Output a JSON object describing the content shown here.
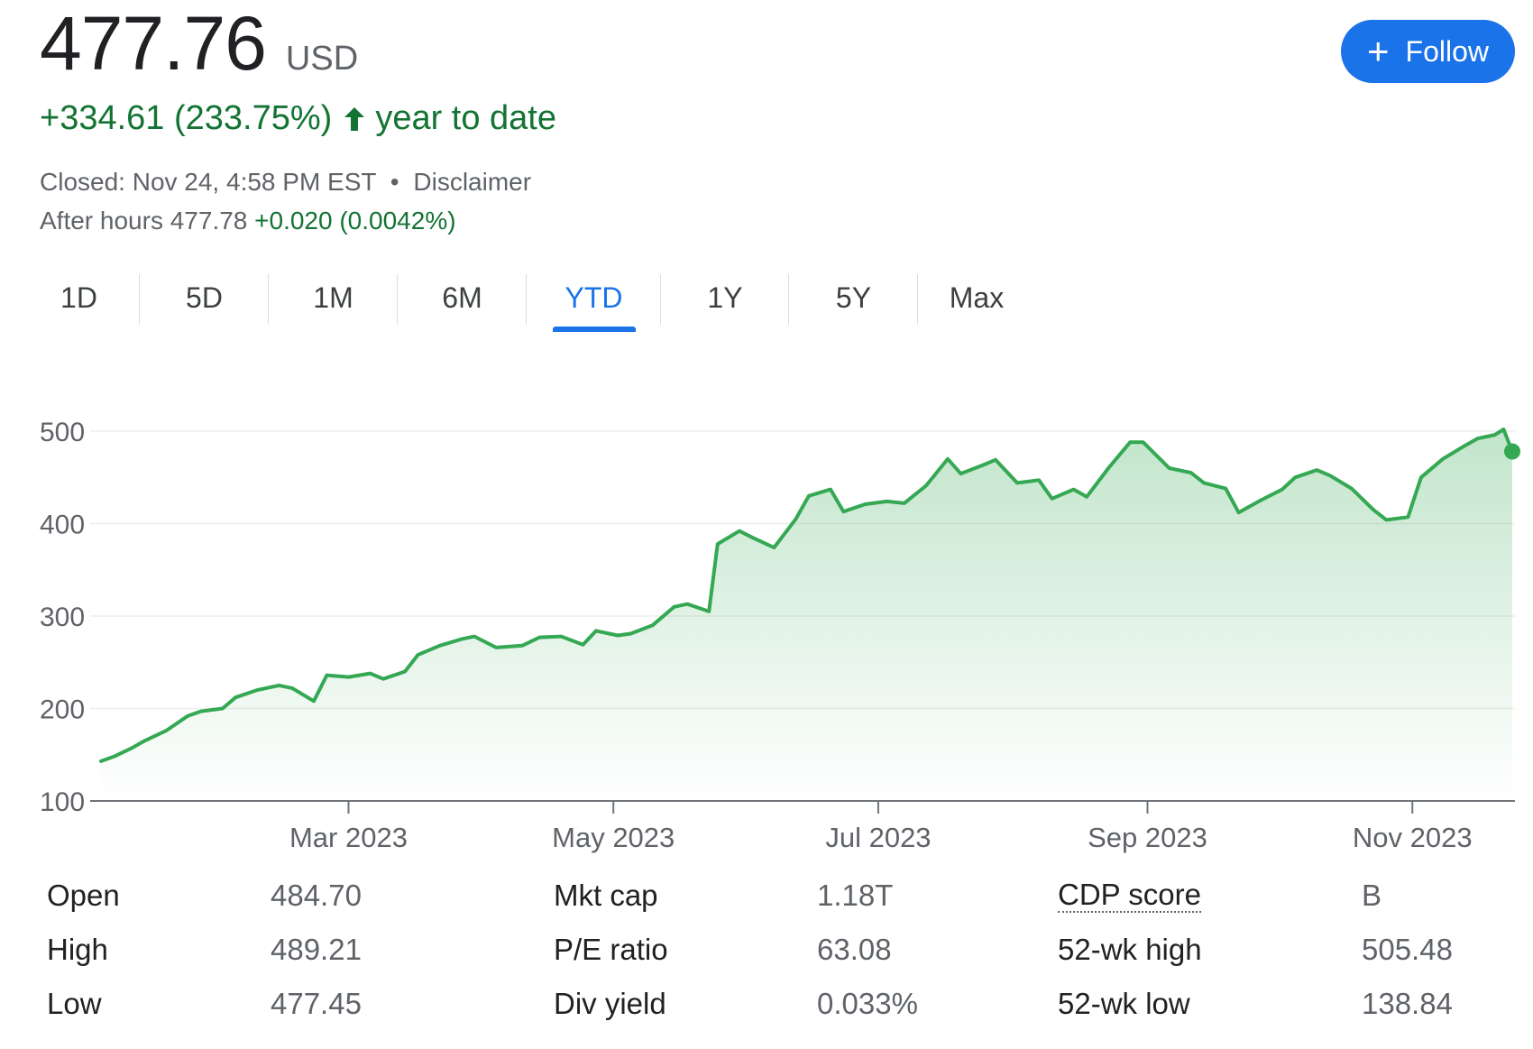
{
  "quote": {
    "price": "477.76",
    "currency": "USD",
    "change": "+334.61 (233.75%)",
    "change_period": "year to date",
    "closed_text": "Closed: Nov 24, 4:58 PM EST",
    "separator": "•",
    "disclaimer": "Disclaimer",
    "after_hours_label": "After hours",
    "after_hours_price": "477.78",
    "after_hours_change": "+0.020 (0.0042%)"
  },
  "follow_button": {
    "label": "Follow"
  },
  "ranges": [
    "1D",
    "5D",
    "1M",
    "6M",
    "YTD",
    "1Y",
    "5Y",
    "Max"
  ],
  "active_range": "YTD",
  "colors": {
    "line": "#34a853",
    "positive_text": "#137333",
    "accent": "#1a73e8"
  },
  "chart_data": {
    "type": "area",
    "ylim": [
      100,
      500
    ],
    "yticks": [
      "100",
      "200",
      "300",
      "400",
      "500"
    ],
    "xticks": [
      {
        "label": "Mar 2023",
        "date": "2023-03-01"
      },
      {
        "label": "May 2023",
        "date": "2023-05-01"
      },
      {
        "label": "Jul 2023",
        "date": "2023-07-01"
      },
      {
        "label": "Sep 2023",
        "date": "2023-09-01"
      },
      {
        "label": "Nov 2023",
        "date": "2023-11-01"
      }
    ],
    "grid": true,
    "x": [
      "2023-01-03",
      "2023-01-06",
      "2023-01-10",
      "2023-01-13",
      "2023-01-18",
      "2023-01-23",
      "2023-01-26",
      "2023-01-31",
      "2023-02-03",
      "2023-02-08",
      "2023-02-13",
      "2023-02-16",
      "2023-02-21",
      "2023-02-24",
      "2023-03-01",
      "2023-03-06",
      "2023-03-09",
      "2023-03-14",
      "2023-03-17",
      "2023-03-22",
      "2023-03-27",
      "2023-03-30",
      "2023-04-04",
      "2023-04-10",
      "2023-04-14",
      "2023-04-19",
      "2023-04-24",
      "2023-04-27",
      "2023-05-02",
      "2023-05-05",
      "2023-05-10",
      "2023-05-15",
      "2023-05-18",
      "2023-05-23",
      "2023-05-25",
      "2023-05-30",
      "2023-06-02",
      "2023-06-07",
      "2023-06-12",
      "2023-06-15",
      "2023-06-20",
      "2023-06-23",
      "2023-06-28",
      "2023-07-03",
      "2023-07-07",
      "2023-07-12",
      "2023-07-17",
      "2023-07-20",
      "2023-07-25",
      "2023-07-28",
      "2023-08-02",
      "2023-08-07",
      "2023-08-10",
      "2023-08-15",
      "2023-08-18",
      "2023-08-23",
      "2023-08-28",
      "2023-08-31",
      "2023-09-06",
      "2023-09-11",
      "2023-09-14",
      "2023-09-19",
      "2023-09-22",
      "2023-09-27",
      "2023-10-02",
      "2023-10-05",
      "2023-10-10",
      "2023-10-13",
      "2023-10-18",
      "2023-10-23",
      "2023-10-26",
      "2023-10-31",
      "2023-11-03",
      "2023-11-08",
      "2023-11-13",
      "2023-11-16",
      "2023-11-20",
      "2023-11-22",
      "2023-11-24"
    ],
    "series": [
      {
        "values": [
          143,
          148,
          157,
          165,
          176,
          192,
          197,
          200,
          212,
          220,
          225,
          222,
          208,
          236,
          234,
          238,
          232,
          240,
          258,
          268,
          275,
          278,
          266,
          268,
          277,
          278,
          269,
          284,
          279,
          281,
          290,
          310,
          313,
          305,
          378,
          392,
          385,
          374,
          405,
          430,
          437,
          413,
          421,
          424,
          422,
          441,
          470,
          454,
          463,
          469,
          444,
          447,
          427,
          437,
          429,
          460,
          488,
          488,
          460,
          455,
          444,
          438,
          412,
          425,
          437,
          450,
          458,
          452,
          438,
          415,
          404,
          407,
          450,
          470,
          484,
          492,
          496,
          502,
          478
        ]
      }
    ]
  },
  "stats": {
    "col1": [
      {
        "label": "Open",
        "value": "484.70"
      },
      {
        "label": "High",
        "value": "489.21"
      },
      {
        "label": "Low",
        "value": "477.45"
      }
    ],
    "col2": [
      {
        "label": "Mkt cap",
        "value": "1.18T"
      },
      {
        "label": "P/E ratio",
        "value": "63.08"
      },
      {
        "label": "Div yield",
        "value": "0.033%"
      }
    ],
    "col3": [
      {
        "label": "CDP score",
        "value": "B"
      },
      {
        "label": "52-wk high",
        "value": "505.48"
      },
      {
        "label": "52-wk low",
        "value": "138.84"
      }
    ]
  }
}
